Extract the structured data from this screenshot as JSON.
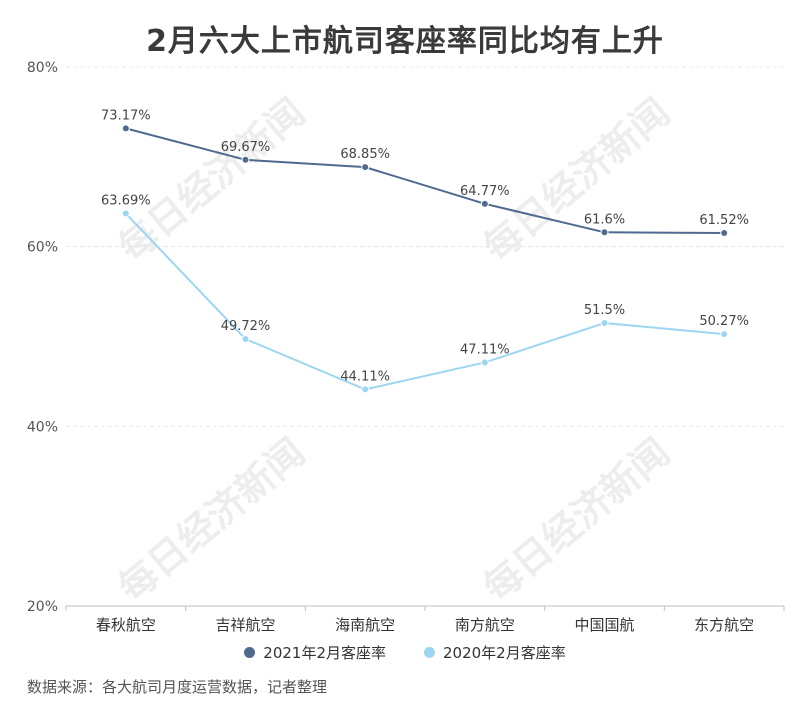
{
  "title": "2月六大上市航司客座率同比均有上升",
  "source": "数据来源：各大航司月度运营数据，记者整理",
  "watermark": "每日经济新闻",
  "colors": {
    "series_2021": "#4f6a8f",
    "series_2020": "#9dd6f0",
    "grid": "#e8e8e8",
    "axis_text": "#555555",
    "label_text": "#444444"
  },
  "chart_data": {
    "type": "line",
    "title": "2月六大上市航司客座率同比均有上升",
    "xlabel": "",
    "ylabel": "",
    "ylim": [
      20,
      80
    ],
    "yticks": [
      20,
      40,
      60,
      80
    ],
    "ytick_labels": [
      "20%",
      "40%",
      "60%",
      "80%"
    ],
    "grid": true,
    "legend_position": "bottom",
    "categories": [
      "春秋航空",
      "吉祥航空",
      "海南航空",
      "南方航空",
      "中国国航",
      "东方航空"
    ],
    "series": [
      {
        "name": "2021年2月客座率",
        "values": [
          73.17,
          69.67,
          68.85,
          64.77,
          61.6,
          61.52
        ],
        "labels": [
          "73.17%",
          "69.67%",
          "68.85%",
          "64.77%",
          "61.6%",
          "61.52%"
        ]
      },
      {
        "name": "2020年2月客座率",
        "values": [
          63.69,
          49.72,
          44.11,
          47.11,
          51.5,
          50.27
        ],
        "labels": [
          "63.69%",
          "49.72%",
          "44.11%",
          "47.11%",
          "51.5%",
          "50.27%"
        ]
      }
    ]
  }
}
